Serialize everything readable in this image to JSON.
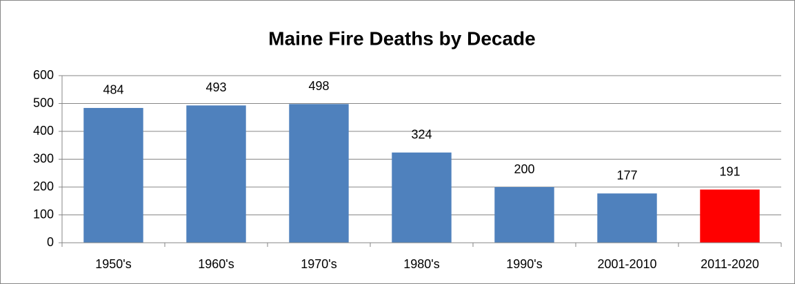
{
  "chart_data": {
    "type": "bar",
    "title": "Maine Fire Deaths by Decade",
    "categories": [
      "1950's",
      "1960's",
      "1970's",
      "1980's",
      "1990's",
      "2001-2010",
      "2011-2020"
    ],
    "values": [
      484,
      493,
      498,
      324,
      200,
      177,
      191
    ],
    "colors": [
      "#4f81bd",
      "#4f81bd",
      "#4f81bd",
      "#4f81bd",
      "#4f81bd",
      "#4f81bd",
      "#ff0000"
    ],
    "ylim": [
      0,
      600
    ],
    "yticks": [
      0,
      100,
      200,
      300,
      400,
      500,
      600
    ],
    "grid": true
  }
}
